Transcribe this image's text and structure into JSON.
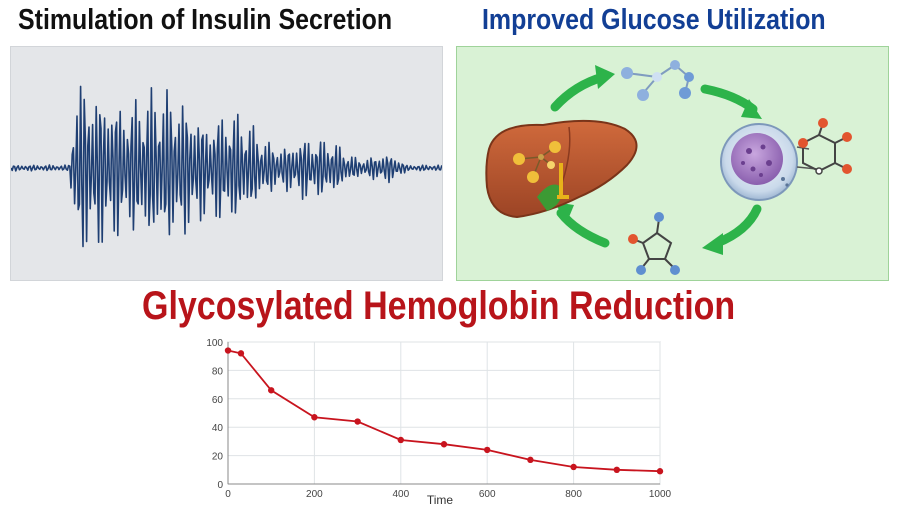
{
  "titles": {
    "insulin": "Stimulation of Insulin Secretion",
    "glucose": "Improved Glucose Utilization",
    "hba1c": "Glycosylated Hemoglobin Reduction"
  },
  "colors": {
    "insulin_title": "#111111",
    "glucose_title": "#123f95",
    "hba1c_title": "#b8141a",
    "waveform": "#1f3f73",
    "cycle_arrows": "#2db34a",
    "liver": "#b4532d",
    "cell": "#9a74b8",
    "line": "#c8141e"
  },
  "icons": {
    "waveform": "waveform-icon",
    "liver": "liver-icon",
    "cell": "cell-icon",
    "molecules": "molecule-icon",
    "arrows": "cycle-arrow-icon"
  },
  "chart_data": {
    "type": "line",
    "xlabel": "Time",
    "ylabel": "",
    "xlim": [
      0,
      1000
    ],
    "ylim": [
      0,
      100
    ],
    "xticks": [
      0,
      200,
      400,
      600,
      800,
      1000
    ],
    "yticks": [
      0,
      20,
      40,
      60,
      80,
      100
    ],
    "grid": true,
    "x": [
      0,
      30,
      100,
      200,
      300,
      400,
      500,
      600,
      700,
      800,
      900,
      1000
    ],
    "y": [
      94,
      92,
      66,
      47,
      44,
      31,
      28,
      24,
      17,
      12,
      10,
      9
    ]
  }
}
